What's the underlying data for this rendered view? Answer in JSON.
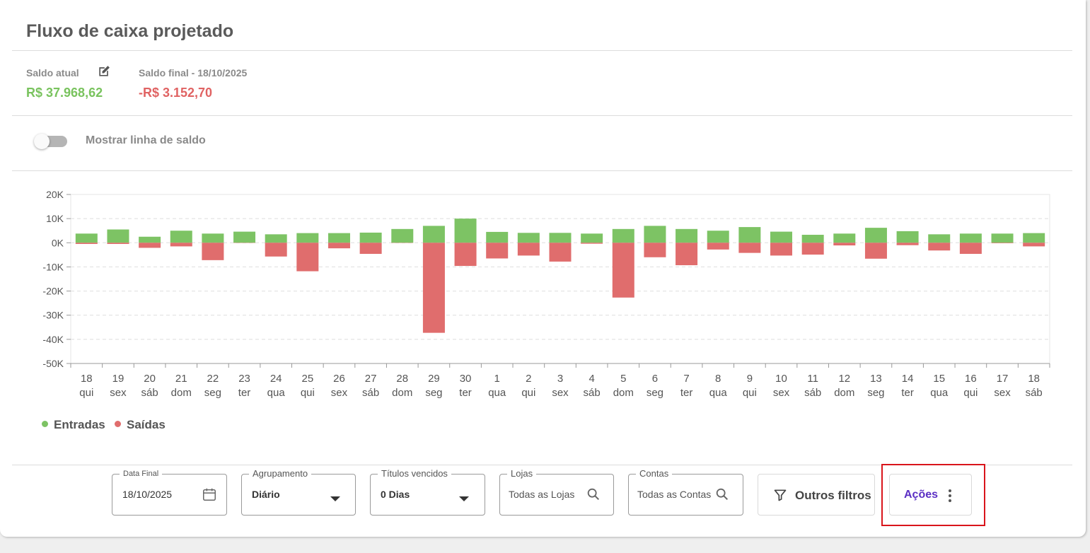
{
  "page": {
    "title": "Fluxo de caixa projetado"
  },
  "balance": {
    "current_label": "Saldo atual",
    "current_value": "R$ 37.968,62",
    "final_label": "Saldo final - 18/10/2025",
    "final_value": "-R$ 3.152,70"
  },
  "toggle": {
    "label": "Mostrar linha de saldo",
    "on": false
  },
  "legend": {
    "in_label": "Entradas",
    "out_label": "Saídas"
  },
  "colors": {
    "in": "#7dc364",
    "out": "#e06d6d",
    "positive_text": "#79c35e",
    "negative_text": "#e06363",
    "accent": "#5b2fc4"
  },
  "chart_data": {
    "type": "bar",
    "ylim": [
      -50000,
      20000
    ],
    "yticks": [
      "20K",
      "10K",
      "0K",
      "-10K",
      "-20K",
      "-30K",
      "-40K",
      "-50K"
    ],
    "categories": [
      {
        "day": "18",
        "weekday": "qui"
      },
      {
        "day": "19",
        "weekday": "sex"
      },
      {
        "day": "20",
        "weekday": "sáb"
      },
      {
        "day": "21",
        "weekday": "dom"
      },
      {
        "day": "22",
        "weekday": "seg"
      },
      {
        "day": "23",
        "weekday": "ter"
      },
      {
        "day": "24",
        "weekday": "qua"
      },
      {
        "day": "25",
        "weekday": "qui"
      },
      {
        "day": "26",
        "weekday": "sex"
      },
      {
        "day": "27",
        "weekday": "sáb"
      },
      {
        "day": "28",
        "weekday": "dom"
      },
      {
        "day": "29",
        "weekday": "seg"
      },
      {
        "day": "30",
        "weekday": "ter"
      },
      {
        "day": "1",
        "weekday": "qua"
      },
      {
        "day": "2",
        "weekday": "qui"
      },
      {
        "day": "3",
        "weekday": "sex"
      },
      {
        "day": "4",
        "weekday": "sáb"
      },
      {
        "day": "5",
        "weekday": "dom"
      },
      {
        "day": "6",
        "weekday": "seg"
      },
      {
        "day": "7",
        "weekday": "ter"
      },
      {
        "day": "8",
        "weekday": "qua"
      },
      {
        "day": "9",
        "weekday": "qui"
      },
      {
        "day": "10",
        "weekday": "sex"
      },
      {
        "day": "11",
        "weekday": "sáb"
      },
      {
        "day": "12",
        "weekday": "dom"
      },
      {
        "day": "13",
        "weekday": "seg"
      },
      {
        "day": "14",
        "weekday": "ter"
      },
      {
        "day": "15",
        "weekday": "qua"
      },
      {
        "day": "16",
        "weekday": "qui"
      },
      {
        "day": "17",
        "weekday": "sex"
      },
      {
        "day": "18",
        "weekday": "sáb"
      }
    ],
    "series": [
      {
        "name": "Entradas",
        "values": [
          3800,
          5500,
          2500,
          5000,
          3800,
          4600,
          3500,
          4000,
          4000,
          4200,
          5700,
          7000,
          10000,
          4500,
          4100,
          4100,
          3800,
          5700,
          7000,
          5700,
          5000,
          6500,
          4600,
          3300,
          3800,
          6200,
          4800,
          3500,
          3800,
          3800,
          4000
        ]
      },
      {
        "name": "Saídas",
        "values": [
          -500,
          -500,
          -2100,
          -1500,
          -7200,
          -100,
          -5700,
          -11800,
          -2300,
          -4600,
          -100,
          -37300,
          -9600,
          -6500,
          -5300,
          -7800,
          -400,
          -22700,
          -6000,
          -9300,
          -2800,
          -4200,
          -5300,
          -4900,
          -1100,
          -6600,
          -1000,
          -3200,
          -4600,
          -200,
          -1500
        ]
      }
    ]
  },
  "filters": {
    "date_label": "Data Final",
    "date_value": "18/10/2025",
    "grouping_label": "Agrupamento",
    "grouping_value": "Diário",
    "overdue_label": "Títulos vencidos",
    "overdue_value": "0 Dias",
    "stores_label": "Lojas",
    "stores_placeholder": "Todas as Lojas",
    "accounts_label": "Contas",
    "accounts_placeholder": "Todas as Contas",
    "more_filters_label": "Outros filtros",
    "actions_label": "Ações"
  }
}
